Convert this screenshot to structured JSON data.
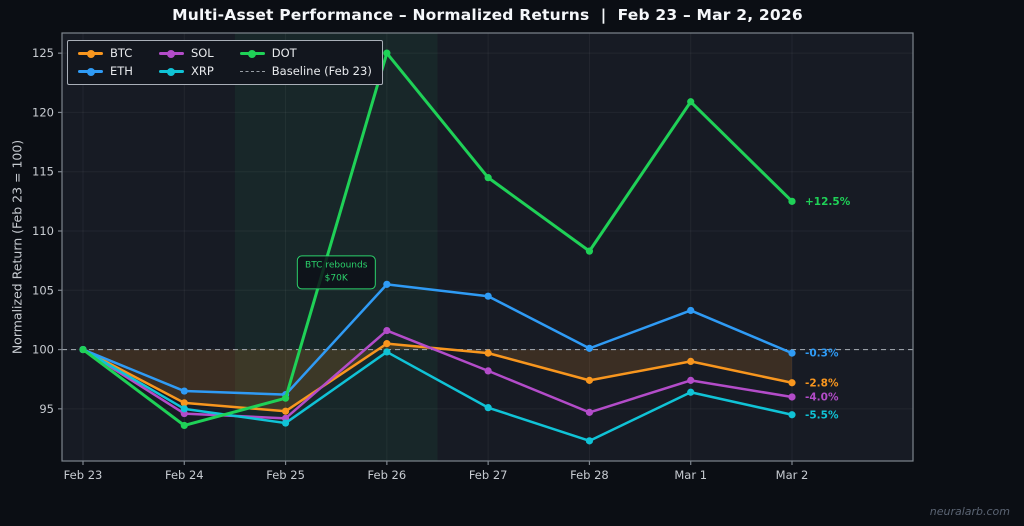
{
  "title": "Multi-Asset Performance – Normalized Returns  |  Feb 23 – Mar 2, 2026",
  "watermark": "neuralarb.com",
  "annotation": {
    "line1": "BTC rebounds",
    "line2": "$70K",
    "x_index": 2.5,
    "y_value": 106.5,
    "color": "#2bd16b"
  },
  "chart_data": {
    "type": "line",
    "title": "Multi-Asset Performance – Normalized Returns  |  Feb 23 – Mar 2, 2026",
    "xlabel": "",
    "ylabel": "Normalized Return (Feb 23 = 100)",
    "categories": [
      "Feb 23",
      "Feb 24",
      "Feb 25",
      "Feb 26",
      "Feb 27",
      "Feb 28",
      "Mar 1",
      "Mar 2"
    ],
    "ylim": [
      90.6,
      126.7
    ],
    "yticks": [
      95,
      100,
      105,
      110,
      115,
      120,
      125
    ],
    "grid": true,
    "legend_position": "top-left",
    "series": [
      {
        "name": "BTC",
        "color": "#f8961e",
        "end_label": "-2.8%",
        "fill_to_baseline": true,
        "values": [
          100,
          95.5,
          94.8,
          100.5,
          99.7,
          97.4,
          99.0,
          97.2
        ]
      },
      {
        "name": "ETH",
        "color": "#2f9bf5",
        "end_label": "-0.3%",
        "values": [
          100,
          96.5,
          96.2,
          105.5,
          104.5,
          100.1,
          103.3,
          99.7
        ]
      },
      {
        "name": "SOL",
        "color": "#b34cc9",
        "end_label": "-4.0%",
        "values": [
          100,
          94.6,
          94.2,
          101.6,
          98.2,
          94.7,
          97.4,
          96.0
        ]
      },
      {
        "name": "XRP",
        "color": "#10c3d6",
        "end_label": "-5.5%",
        "values": [
          100,
          95.0,
          93.8,
          99.8,
          95.1,
          92.3,
          96.4,
          94.5
        ]
      },
      {
        "name": "DOT",
        "color": "#1fd157",
        "end_label": "+12.5%",
        "values": [
          100,
          93.6,
          95.9,
          125.0,
          114.5,
          108.3,
          120.9,
          112.5
        ]
      }
    ],
    "baseline": {
      "label": "Baseline (Feb 23)",
      "value": 100,
      "color": "#999fa6",
      "style": "dashed"
    },
    "highlight_band": {
      "x_from_index": 1.5,
      "x_to_index": 3.5,
      "color": "rgba(46,204,113,0.07)"
    }
  }
}
